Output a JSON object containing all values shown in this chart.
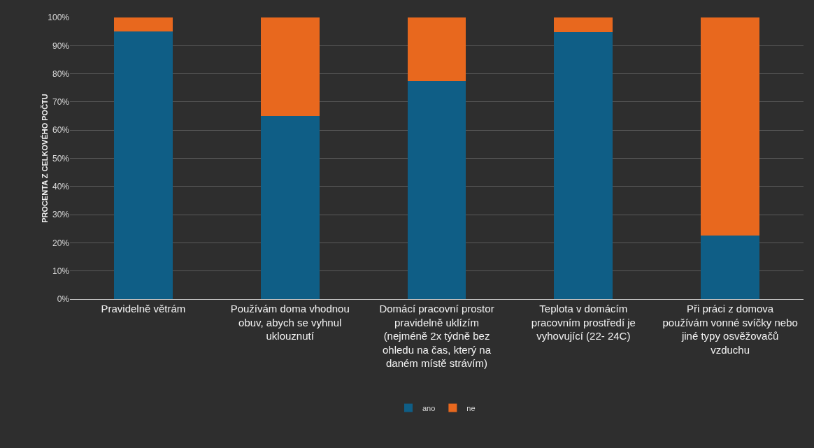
{
  "chart_data": {
    "type": "bar",
    "stacked": true,
    "ylabel": "PROCENTA Z CELKOVÉHO POČTU",
    "categories": [
      "Pravidelně větrám",
      "Používám doma vhodnou obuv, abych se vyhnul uklouznutí",
      "Domácí pracovní prostor pravidelně uklízím (nejméně 2x týdně bez ohledu na čas, který na daném místě strávím)",
      "Teplota v domácím pracovním prostředí je vyhovující (22- 24C)",
      "Při práci z domova používám vonné svíčky nebo jiné typy osvěžovačů vzduchu"
    ],
    "series": [
      {
        "name": "ano",
        "color": "#0f5e86",
        "values": [
          95,
          65,
          77.5,
          94.7,
          22.5
        ]
      },
      {
        "name": "ne",
        "color": "#e8681e",
        "values": [
          5,
          35,
          22.5,
          5.3,
          77.5
        ]
      }
    ],
    "ylim": [
      0,
      100
    ],
    "yticks": [
      {
        "value": 0,
        "label": "0%"
      },
      {
        "value": 10,
        "label": "10%"
      },
      {
        "value": 20,
        "label": "20%"
      },
      {
        "value": 30,
        "label": "30%"
      },
      {
        "value": 40,
        "label": "40%"
      },
      {
        "value": 50,
        "label": "50%"
      },
      {
        "value": 60,
        "label": "60%"
      },
      {
        "value": 70,
        "label": "70%"
      },
      {
        "value": 80,
        "label": "80%"
      },
      {
        "value": 90,
        "label": "90%"
      },
      {
        "value": 100,
        "label": "100%"
      }
    ],
    "grid": "y",
    "legend": "bottom"
  }
}
